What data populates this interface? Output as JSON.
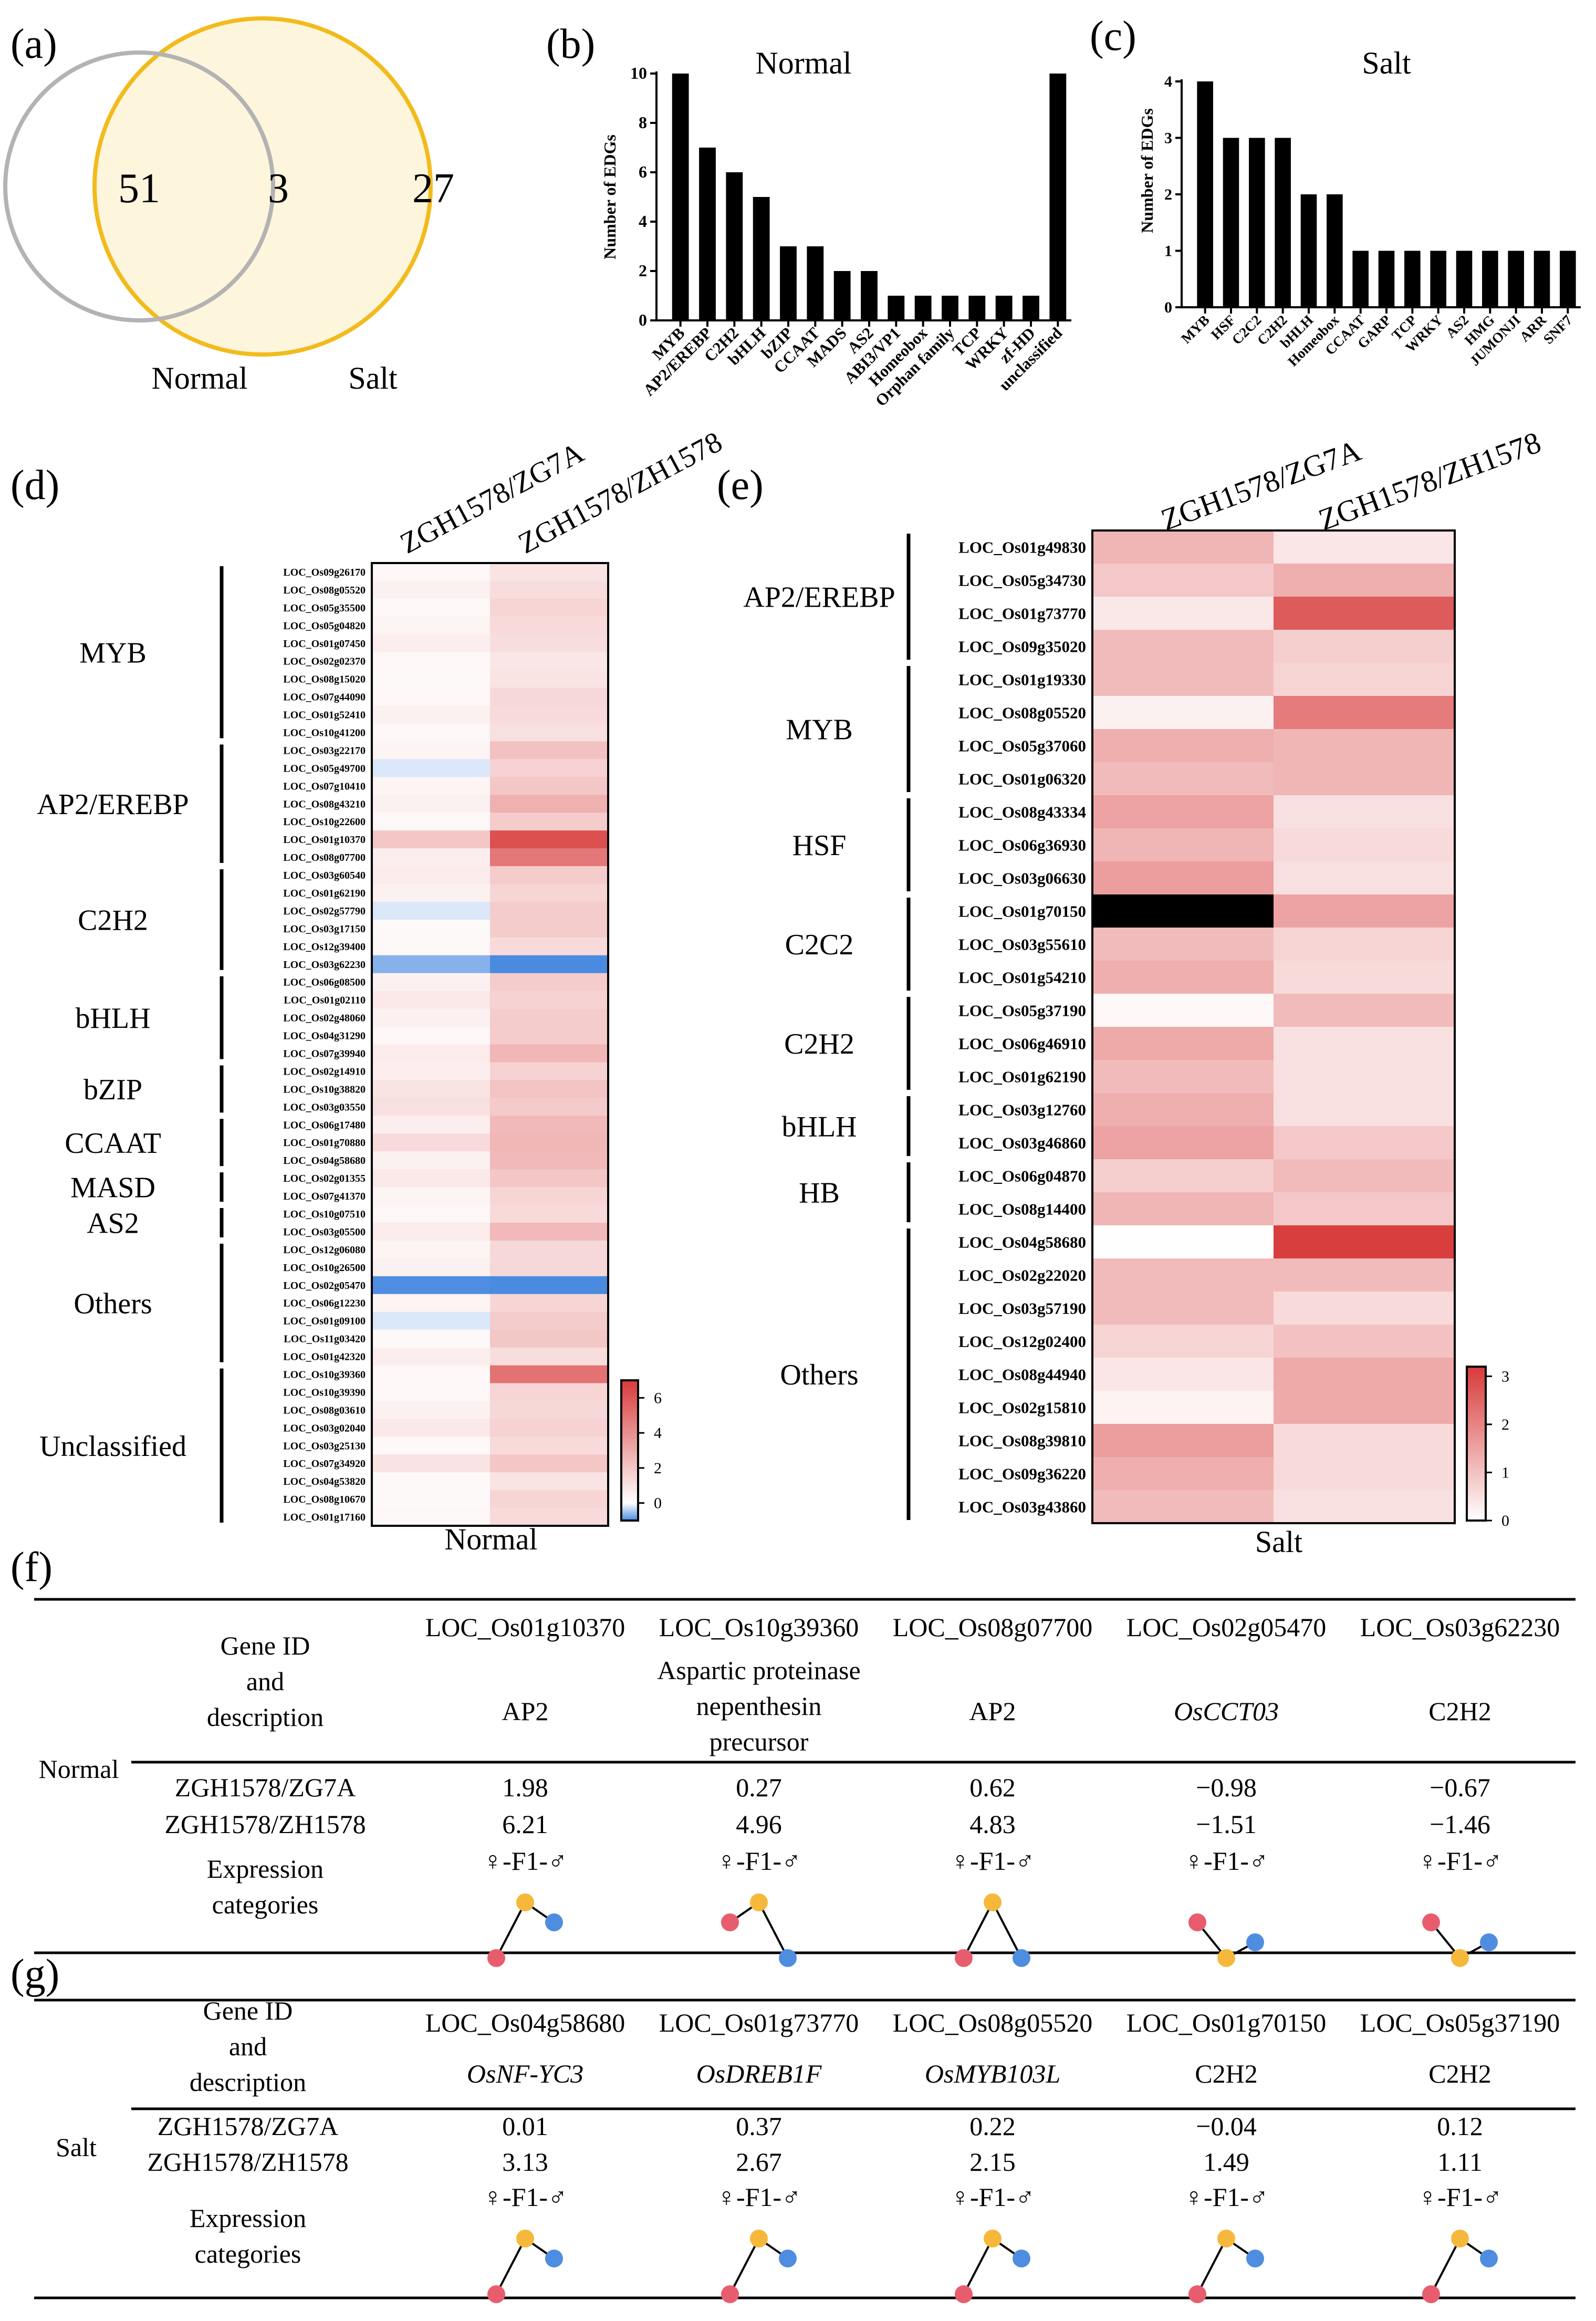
{
  "panels": {
    "a": "(a)",
    "b": "(b)",
    "c": "(c)",
    "d": "(d)",
    "e": "(e)",
    "f": "(f)",
    "g": "(g)"
  },
  "colors": {
    "red": "#d83a3a",
    "white": "#ffffff",
    "blue": "#4a8be0",
    "venn_normal": "#b3b3b3",
    "venn_salt": "#f2bb1d",
    "salt_fill": "#fdf6dd",
    "dot_female": "#e85d6e",
    "dot_f1": "#f6b83b",
    "dot_male": "#4f8de1"
  },
  "chart_data": [
    {
      "id": "a",
      "type": "venn",
      "sets": [
        "Normal",
        "Salt"
      ],
      "values": {
        "normal_only": "51",
        "both": "3",
        "salt_only": "27"
      }
    },
    {
      "id": "b",
      "type": "bar",
      "title": "Normal",
      "xlabel": "",
      "ylabel": "Number of EDGs",
      "ylim": [
        0,
        10
      ],
      "yticks": [
        "0",
        "2",
        "4",
        "6",
        "8",
        "10"
      ],
      "categories": [
        "MYB",
        "AP2/EREBP",
        "C2H2",
        "bHLH",
        "bZIP",
        "CCAAT",
        "MADS",
        "AS2",
        "ABI3/VP1",
        "Homeobox",
        "Orphan family",
        "TCP",
        "WRKY",
        "zf-HD",
        "unclassified"
      ],
      "values": [
        10,
        7,
        6,
        5,
        3,
        3,
        2,
        2,
        1,
        1,
        1,
        1,
        1,
        1,
        10
      ]
    },
    {
      "id": "c",
      "type": "bar",
      "title": "Salt",
      "xlabel": "",
      "ylabel": "Number of EDGs",
      "ylim": [
        0,
        4
      ],
      "yticks": [
        "0",
        "1",
        "2",
        "3",
        "4"
      ],
      "categories": [
        "MYB",
        "HSF",
        "C2C2",
        "C2H2",
        "bHLH",
        "Homeobox",
        "CCAAT",
        "GARP",
        "TCP",
        "WRKY",
        "AS2",
        "HMG",
        "JUMONJI",
        "ARR",
        "SNF7"
      ],
      "values": [
        4,
        3,
        3,
        3,
        2,
        2,
        1,
        1,
        1,
        1,
        1,
        1,
        1,
        1,
        1
      ]
    },
    {
      "id": "d",
      "type": "heatmap",
      "title": "Normal",
      "vmin": -1,
      "vmax": 7,
      "columns": [
        "ZGH1578/ZG7A",
        "ZGH1578/ZH1578"
      ],
      "colorbar_ticks": [
        "6",
        "4",
        "2",
        "0"
      ],
      "rows": [
        "LOC_Os09g26170",
        "LOC_Os08g05520",
        "LOC_Os05g35500",
        "LOC_Os05g04820",
        "LOC_Os01g07450",
        "LOC_Os02g02370",
        "LOC_Os08g15020",
        "LOC_Os07g44090",
        "LOC_Os01g52410",
        "LOC_Os10g41200",
        "LOC_Os03g22170",
        "LOC_Os05g49700",
        "LOC_Os07g10410",
        "LOC_Os08g43210",
        "LOC_Os10g22600",
        "LOC_Os01g10370",
        "LOC_Os08g07700",
        "LOC_Os03g60540",
        "LOC_Os01g62190",
        "LOC_Os02g57790",
        "LOC_Os03g17150",
        "LOC_Os12g39400",
        "LOC_Os03g62230",
        "LOC_Os06g08500",
        "LOC_Os01g02110",
        "LOC_Os02g48060",
        "LOC_Os04g31290",
        "LOC_Os07g39940",
        "LOC_Os02g14910",
        "LOC_Os10g38820",
        "LOC_Os03g03550",
        "LOC_Os06g17480",
        "LOC_Os01g70880",
        "LOC_Os04g58680",
        "LOC_Os02g01355",
        "LOC_Os07g41370",
        "LOC_Os10g07510",
        "LOC_Os03g05500",
        "LOC_Os12g06080",
        "LOC_Os10g26500",
        "LOC_Os02g05470",
        "LOC_Os06g12230",
        "LOC_Os01g09100",
        "LOC_Os11g03420",
        "LOC_Os01g42320",
        "LOC_Os10g39360",
        "LOC_Os10g39390",
        "LOC_Os08g03610",
        "LOC_Os03g02040",
        "LOC_Os03g25130",
        "LOC_Os07g34920",
        "LOC_Os04g53820",
        "LOC_Os08g10670",
        "LOC_Os01g17160"
      ],
      "values": [
        [
          0.3,
          1.0
        ],
        [
          0.5,
          1.2
        ],
        [
          0.3,
          1.5
        ],
        [
          0.4,
          1.3
        ],
        [
          0.6,
          1.2
        ],
        [
          0.3,
          0.9
        ],
        [
          0.2,
          1.0
        ],
        [
          0.3,
          1.4
        ],
        [
          0.5,
          1.3
        ],
        [
          0.3,
          1.1
        ],
        [
          0.4,
          2.2
        ],
        [
          -0.2,
          1.6
        ],
        [
          0.4,
          2.0
        ],
        [
          0.5,
          2.8
        ],
        [
          0.3,
          1.8
        ],
        [
          1.98,
          6.21
        ],
        [
          0.62,
          4.83
        ],
        [
          0.7,
          1.8
        ],
        [
          0.5,
          1.5
        ],
        [
          -0.2,
          1.8
        ],
        [
          0.2,
          1.8
        ],
        [
          0.3,
          1.3
        ],
        [
          -0.67,
          -1.46
        ],
        [
          0.5,
          1.8
        ],
        [
          0.8,
          1.6
        ],
        [
          0.5,
          1.8
        ],
        [
          0.3,
          1.8
        ],
        [
          0.7,
          2.6
        ],
        [
          0.6,
          1.6
        ],
        [
          1.0,
          2.1
        ],
        [
          1.1,
          1.9
        ],
        [
          0.6,
          2.5
        ],
        [
          1.3,
          2.6
        ],
        [
          0.5,
          2.5
        ],
        [
          0.8,
          2.0
        ],
        [
          0.4,
          1.5
        ],
        [
          0.3,
          1.3
        ],
        [
          0.7,
          2.5
        ],
        [
          0.4,
          1.4
        ],
        [
          0.5,
          1.4
        ],
        [
          -0.98,
          -1.51
        ],
        [
          0.4,
          1.5
        ],
        [
          -0.2,
          1.8
        ],
        [
          0.2,
          2.0
        ],
        [
          0.6,
          1.2
        ],
        [
          0.27,
          4.96
        ],
        [
          0.3,
          1.5
        ],
        [
          0.5,
          1.4
        ],
        [
          0.8,
          1.6
        ],
        [
          0.2,
          1.3
        ],
        [
          1.0,
          2.0
        ],
        [
          0.2,
          1.0
        ],
        [
          0.2,
          1.5
        ],
        [
          0.3,
          1.3
        ]
      ],
      "groups": [
        {
          "name": "MYB",
          "start": 0,
          "end": 9
        },
        {
          "name": "AP2/EREBP",
          "start": 10,
          "end": 16
        },
        {
          "name": "C2H2",
          "start": 17,
          "end": 22
        },
        {
          "name": "bHLH",
          "start": 23,
          "end": 27
        },
        {
          "name": "bZIP",
          "start": 28,
          "end": 30
        },
        {
          "name": "CCAAT",
          "start": 31,
          "end": 33
        },
        {
          "name": "MASD",
          "start": 34,
          "end": 35
        },
        {
          "name": "AS2",
          "start": 36,
          "end": 37
        },
        {
          "name": "Others",
          "start": 38,
          "end": 44
        },
        {
          "name": "Unclassified",
          "start": 45,
          "end": 53
        }
      ]
    },
    {
      "id": "e",
      "type": "heatmap",
      "title": "Salt",
      "vmin": 0,
      "vmax": 3.2,
      "columns": [
        "ZGH1578/ZG7A",
        "ZGH1578/ZH1578"
      ],
      "colorbar_ticks": [
        "3",
        "2",
        "1",
        "0"
      ],
      "rows": [
        "LOC_Os01g49830",
        "LOC_Os05g34730",
        "LOC_Os01g73770",
        "LOC_Os09g35020",
        "LOC_Os01g19330",
        "LOC_Os08g05520",
        "LOC_Os05g37060",
        "LOC_Os01g06320",
        "LOC_Os08g43334",
        "LOC_Os06g36930",
        "LOC_Os03g06630",
        "LOC_Os01g70150",
        "LOC_Os03g55610",
        "LOC_Os01g54210",
        "LOC_Os05g37190",
        "LOC_Os06g46910",
        "LOC_Os01g62190",
        "LOC_Os03g12760",
        "LOC_Os03g46860",
        "LOC_Os06g04870",
        "LOC_Os08g14400",
        "LOC_Os04g58680",
        "LOC_Os02g22020",
        "LOC_Os03g57190",
        "LOC_Os12g02400",
        "LOC_Os08g44940",
        "LOC_Os02g15810",
        "LOC_Os08g39810",
        "LOC_Os09g36220",
        "LOC_Os03g43860"
      ],
      "values": [
        [
          1.2,
          0.4
        ],
        [
          0.9,
          1.3
        ],
        [
          0.37,
          2.67
        ],
        [
          1.1,
          0.8
        ],
        [
          1.1,
          0.7
        ],
        [
          0.22,
          2.15
        ],
        [
          1.3,
          1.2
        ],
        [
          1.1,
          1.2
        ],
        [
          1.5,
          0.5
        ],
        [
          1.2,
          0.6
        ],
        [
          1.6,
          0.5
        ],
        [
          -0.04,
          1.49
        ],
        [
          1.1,
          0.7
        ],
        [
          1.3,
          0.6
        ],
        [
          0.12,
          1.11
        ],
        [
          1.4,
          0.5
        ],
        [
          1.1,
          0.5
        ],
        [
          1.3,
          0.5
        ],
        [
          1.5,
          0.9
        ],
        [
          0.8,
          1.1
        ],
        [
          1.2,
          0.9
        ],
        [
          0.01,
          3.13
        ],
        [
          1.1,
          1.1
        ],
        [
          1.1,
          0.6
        ],
        [
          0.7,
          1.0
        ],
        [
          0.4,
          1.4
        ],
        [
          0.2,
          1.4
        ],
        [
          1.6,
          0.6
        ],
        [
          1.3,
          0.6
        ],
        [
          1.1,
          0.5
        ]
      ],
      "groups": [
        {
          "name": "AP2/EREBP",
          "start": 0,
          "end": 3
        },
        {
          "name": "MYB",
          "start": 4,
          "end": 7
        },
        {
          "name": "HSF",
          "start": 8,
          "end": 10
        },
        {
          "name": "C2C2",
          "start": 11,
          "end": 13
        },
        {
          "name": "C2H2",
          "start": 14,
          "end": 16
        },
        {
          "name": "bHLH",
          "start": 17,
          "end": 18
        },
        {
          "name": "HB",
          "start": 19,
          "end": 20
        },
        {
          "name": "Others",
          "start": 21,
          "end": 29
        }
      ]
    },
    {
      "id": "f",
      "type": "table",
      "condition": "Normal",
      "header_label": [
        "Gene ID",
        "and",
        "description"
      ],
      "row_labels": [
        "ZGH1578/ZG7A",
        "ZGH1578/ZH1578"
      ],
      "category_label": [
        "Expression",
        "categories"
      ],
      "pattern_label": "♀-F1-♂",
      "columns": [
        {
          "gene_id": "LOC_Os01g10370",
          "description": [
            "AP2"
          ],
          "italic": false,
          "zg7a": "1.98",
          "zh1578": "6.21",
          "pattern": "up-mid"
        },
        {
          "gene_id": "LOC_Os10g39360",
          "description": [
            "Aspartic proteinase",
            "nepenthesin",
            "precursor"
          ],
          "italic": false,
          "zg7a": "0.27",
          "zh1578": "4.96",
          "pattern": "mid-low"
        },
        {
          "gene_id": "LOC_Os08g07700",
          "description": [
            "AP2"
          ],
          "italic": false,
          "zg7a": "0.62",
          "zh1578": "4.83",
          "pattern": "low-low"
        },
        {
          "gene_id": "LOC_Os02g05470",
          "description": [
            "OsCCT03"
          ],
          "italic": true,
          "zg7a": "−0.98",
          "zh1578": "−1.51",
          "pattern": "down"
        },
        {
          "gene_id": "LOC_Os03g62230",
          "description": [
            "C2H2"
          ],
          "italic": false,
          "zg7a": "−0.67",
          "zh1578": "−1.46",
          "pattern": "down"
        }
      ]
    },
    {
      "id": "g",
      "type": "table",
      "condition": "Salt",
      "header_label": [
        "Gene ID",
        "and",
        "description"
      ],
      "row_labels": [
        "ZGH1578/ZG7A",
        "ZGH1578/ZH1578"
      ],
      "category_label": [
        "Expression",
        "categories"
      ],
      "pattern_label": "♀-F1-♂",
      "columns": [
        {
          "gene_id": "LOC_Os04g58680",
          "description": [
            "OsNF-YC3"
          ],
          "italic": true,
          "zg7a": "0.01",
          "zh1578": "3.13",
          "pattern": "up-mid"
        },
        {
          "gene_id": "LOC_Os01g73770",
          "description": [
            "OsDREB1F"
          ],
          "italic": true,
          "zg7a": "0.37",
          "zh1578": "2.67",
          "pattern": "up-mid"
        },
        {
          "gene_id": "LOC_Os08g05520",
          "description": [
            "OsMYB103L"
          ],
          "italic": true,
          "zg7a": "0.22",
          "zh1578": "2.15",
          "pattern": "up-mid"
        },
        {
          "gene_id": "LOC_Os01g70150",
          "description": [
            "C2H2"
          ],
          "italic": false,
          "zg7a": "−0.04",
          "zh1578": "1.49",
          "pattern": "up-mid"
        },
        {
          "gene_id": "LOC_Os05g37190",
          "description": [
            "C2H2"
          ],
          "italic": false,
          "zg7a": "0.12",
          "zh1578": "1.11",
          "pattern": "up-mid"
        }
      ]
    }
  ]
}
